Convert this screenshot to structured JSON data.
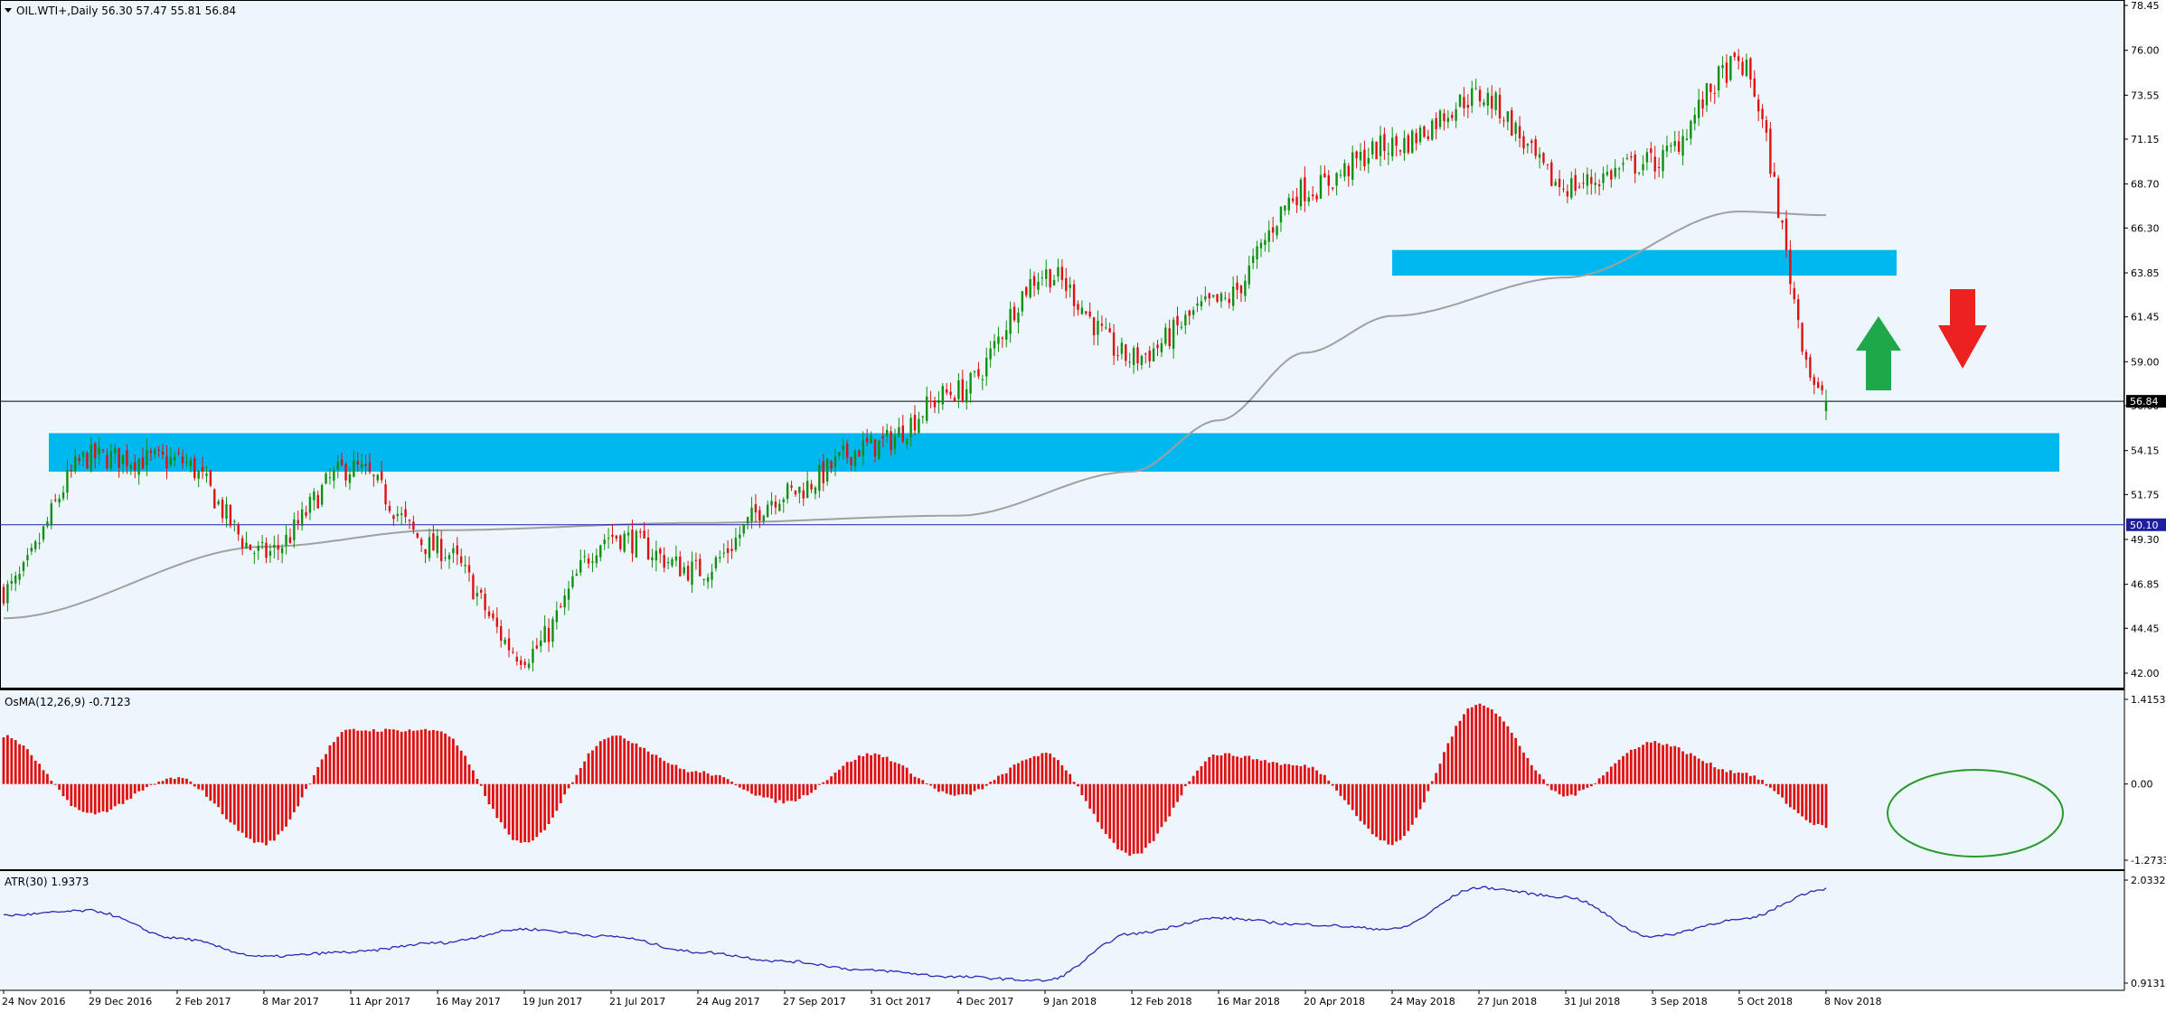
{
  "header": {
    "symbol_line": "OIL.WTI+,Daily  56.30 57.47 55.81 56.84"
  },
  "colors": {
    "background": "#eef6fd",
    "bull": "#109010",
    "bear": "#e01010",
    "zone": "#00b8f0",
    "ma": "#a0a0a0",
    "atr": "#2828b4",
    "hline_price": "#000000",
    "hline_level": "#1e1ea0",
    "arrow_up": "#1fa84a",
    "arrow_down": "#ee2121",
    "ellipse": "#2a9a2a"
  },
  "price_axis": {
    "ticks": [
      "78.45",
      "76.00",
      "73.55",
      "71.15",
      "68.70",
      "66.30",
      "63.85",
      "61.45",
      "59.00",
      "56.60",
      "54.15",
      "51.75",
      "49.30",
      "46.85",
      "44.45",
      "42.00"
    ],
    "current_label": "56.84",
    "level_label": "50.10"
  },
  "osma": {
    "title": "OsMA(12,26,9) -0.7123",
    "ticks": [
      "1.4153",
      "0.00",
      "-1.2733"
    ]
  },
  "atr": {
    "title": "ATR(30) 1.9373",
    "ticks": [
      "2.0332",
      "0.9131"
    ]
  },
  "x_axis": {
    "labels": [
      "24 Nov 2016",
      "29 Dec 2016",
      "2 Feb 2017",
      "8 Mar 2017",
      "11 Apr 2017",
      "16 May 2017",
      "19 Jun 2017",
      "21 Jul 2017",
      "24 Aug 2017",
      "27 Sep 2017",
      "31 Oct 2017",
      "4 Dec 2017",
      "9 Jan 2018",
      "12 Feb 2018",
      "16 Mar 2018",
      "20 Apr 2018",
      "24 May 2018",
      "27 Jun 2018",
      "31 Jul 2018",
      "3 Sep 2018",
      "5 Oct 2018",
      "8 Nov 2018"
    ]
  },
  "chart_data": {
    "type": "line",
    "symbol": "OIL.WTI+",
    "timeframe": "Daily",
    "last_bar": {
      "open": 56.3,
      "high": 57.47,
      "low": 55.81,
      "close": 56.84
    },
    "price_ylim": [
      42.0,
      78.45
    ],
    "close_anchors": [
      {
        "date": "24 Nov 2016",
        "close": 46.5
      },
      {
        "date": "29 Dec 2016",
        "close": 53.8
      },
      {
        "date": "2 Feb 2017",
        "close": 53.6
      },
      {
        "date": "8 Mar 2017",
        "close": 48.5
      },
      {
        "date": "11 Apr 2017",
        "close": 53.2
      },
      {
        "date": "16 May 2017",
        "close": 48.8
      },
      {
        "date": "19 Jun 2017",
        "close": 43.0
      },
      {
        "date": "21 Jul 2017",
        "close": 49.5
      },
      {
        "date": "24 Aug 2017",
        "close": 47.6
      },
      {
        "date": "27 Sep 2017",
        "close": 51.8
      },
      {
        "date": "31 Oct 2017",
        "close": 54.4
      },
      {
        "date": "4 Dec 2017",
        "close": 57.4
      },
      {
        "date": "9 Jan 2018",
        "close": 63.8
      },
      {
        "date": "12 Feb 2018",
        "close": 59.2
      },
      {
        "date": "16 Mar 2018",
        "close": 62.2
      },
      {
        "date": "20 Apr 2018",
        "close": 68.4
      },
      {
        "date": "24 May 2018",
        "close": 70.8
      },
      {
        "date": "27 Jun 2018",
        "close": 73.5
      },
      {
        "date": "31 Jul 2018",
        "close": 68.6
      },
      {
        "date": "3 Sep 2018",
        "close": 69.9
      },
      {
        "date": "5 Oct 2018",
        "close": 75.2
      },
      {
        "date": "8 Nov 2018",
        "close": 56.84
      }
    ],
    "moving_average_anchors": [
      {
        "date": "24 Nov 2016",
        "value": 45.0
      },
      {
        "date": "8 Mar 2017",
        "value": 48.9
      },
      {
        "date": "16 May 2017",
        "value": 49.8
      },
      {
        "date": "24 Aug 2017",
        "value": 50.2
      },
      {
        "date": "4 Dec 2017",
        "value": 50.6
      },
      {
        "date": "12 Feb 2018",
        "value": 53.0
      },
      {
        "date": "16 Mar 2018",
        "value": 55.8
      },
      {
        "date": "20 Apr 2018",
        "value": 59.5
      },
      {
        "date": "24 May 2018",
        "value": 61.5
      },
      {
        "date": "31 Jul 2018",
        "value": 63.6
      },
      {
        "date": "5 Oct 2018",
        "value": 67.2
      },
      {
        "date": "8 Nov 2018",
        "value": 67.0
      }
    ],
    "horizontal_lines": [
      {
        "name": "current price",
        "value": 56.84
      },
      {
        "name": "level",
        "value": 50.1
      }
    ],
    "zones": [
      {
        "from": "29 Nov 2016",
        "to": "25 Jan 2019",
        "low": 53.0,
        "high": 55.1
      },
      {
        "from": "24 May 2018",
        "to": "26 Nov 2018",
        "low": 63.7,
        "high": 65.1
      }
    ],
    "osma_ylim": [
      -1.2733,
      1.4153
    ],
    "osma_anchors": [
      {
        "date": "24 Nov 2016",
        "value": 0.8
      },
      {
        "date": "29 Dec 2016",
        "value": -0.5
      },
      {
        "date": "2 Feb 2017",
        "value": 0.1
      },
      {
        "date": "8 Mar 2017",
        "value": -1.0
      },
      {
        "date": "11 Apr 2017",
        "value": 0.9
      },
      {
        "date": "16 May 2017",
        "value": 0.9
      },
      {
        "date": "19 Jun 2017",
        "value": -1.0
      },
      {
        "date": "21 Jul 2017",
        "value": 0.8
      },
      {
        "date": "24 Aug 2017",
        "value": 0.2
      },
      {
        "date": "27 Sep 2017",
        "value": -0.3
      },
      {
        "date": "31 Oct 2017",
        "value": 0.5
      },
      {
        "date": "4 Dec 2017",
        "value": -0.2
      },
      {
        "date": "9 Jan 2018",
        "value": 0.5
      },
      {
        "date": "12 Feb 2018",
        "value": -1.2
      },
      {
        "date": "16 Mar 2018",
        "value": 0.5
      },
      {
        "date": "20 Apr 2018",
        "value": 0.3
      },
      {
        "date": "24 May 2018",
        "value": -1.0
      },
      {
        "date": "27 Jun 2018",
        "value": 1.35
      },
      {
        "date": "31 Jul 2018",
        "value": -0.2
      },
      {
        "date": "3 Sep 2018",
        "value": 0.7
      },
      {
        "date": "5 Oct 2018",
        "value": 0.2
      },
      {
        "date": "8 Nov 2018",
        "value": -0.7123
      }
    ],
    "atr_ylim": [
      0.9131,
      2.0332
    ],
    "atr_anchors": [
      {
        "date": "24 Nov 2016",
        "value": 1.65
      },
      {
        "date": "29 Dec 2016",
        "value": 1.7
      },
      {
        "date": "2 Feb 2017",
        "value": 1.4
      },
      {
        "date": "8 Mar 2017",
        "value": 1.2
      },
      {
        "date": "11 Apr 2017",
        "value": 1.25
      },
      {
        "date": "16 May 2017",
        "value": 1.35
      },
      {
        "date": "19 Jun 2017",
        "value": 1.5
      },
      {
        "date": "21 Jul 2017",
        "value": 1.42
      },
      {
        "date": "24 Aug 2017",
        "value": 1.25
      },
      {
        "date": "27 Sep 2017",
        "value": 1.15
      },
      {
        "date": "31 Oct 2017",
        "value": 1.05
      },
      {
        "date": "4 Dec 2017",
        "value": 0.98
      },
      {
        "date": "9 Jan 2018",
        "value": 0.94
      },
      {
        "date": "12 Feb 2018",
        "value": 1.45
      },
      {
        "date": "16 Mar 2018",
        "value": 1.62
      },
      {
        "date": "20 Apr 2018",
        "value": 1.55
      },
      {
        "date": "24 May 2018",
        "value": 1.5
      },
      {
        "date": "27 Jun 2018",
        "value": 1.95
      },
      {
        "date": "31 Jul 2018",
        "value": 1.85
      },
      {
        "date": "3 Sep 2018",
        "value": 1.42
      },
      {
        "date": "5 Oct 2018",
        "value": 1.6
      },
      {
        "date": "8 Nov 2018",
        "value": 1.9373
      }
    ],
    "annotations": [
      "green up arrow",
      "red down arrow",
      "green ellipse around OsMA negative histogram"
    ]
  }
}
